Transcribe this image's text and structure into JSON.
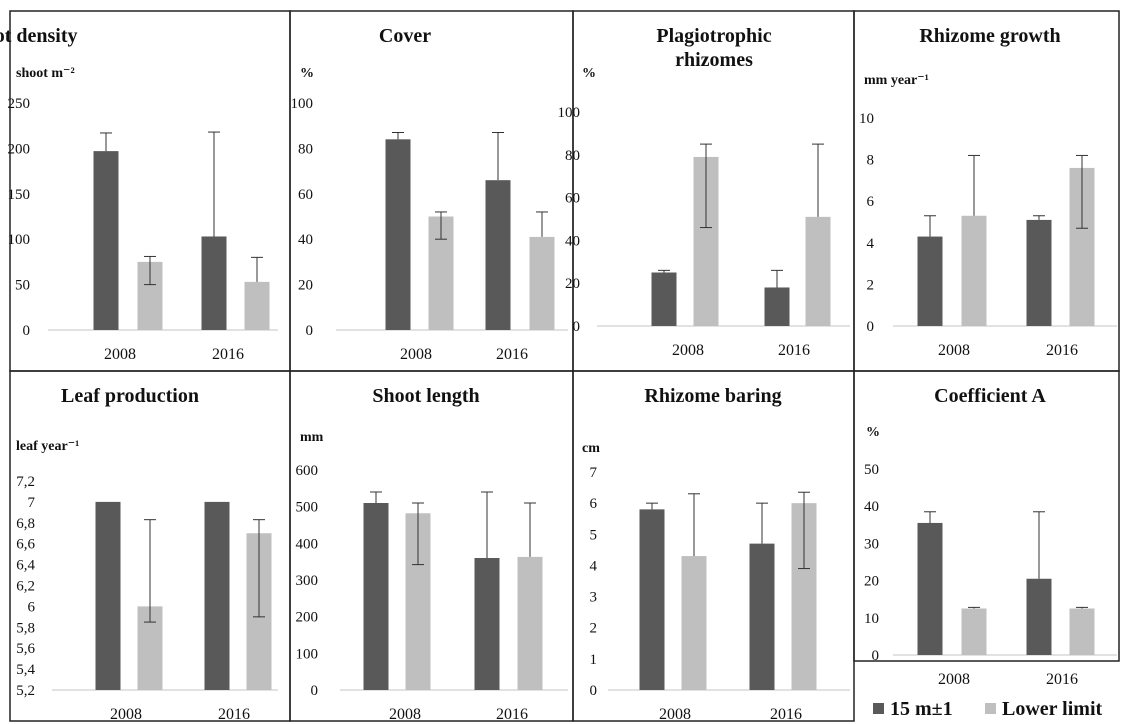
{
  "colors": {
    "dark": "#595959",
    "light": "#bfbfbf",
    "frame": "#222222",
    "baseline": "#d9d9d9",
    "error": "#333333"
  },
  "legend": {
    "items": [
      "15 m±1",
      "Lower limit"
    ]
  },
  "chart_data": [
    {
      "type": "bar",
      "title": "Shoot density",
      "ylabel": "shoot m⁻²",
      "categories": [
        "2008",
        "2016"
      ],
      "ylim": [
        0,
        250
      ],
      "yticks": [
        "0",
        "50",
        "100",
        "150",
        "200",
        "250"
      ],
      "series": [
        {
          "name": "15 m±1",
          "values": [
            197,
            103
          ],
          "err_low": [
            0,
            0
          ],
          "err_high": [
            20,
            115
          ]
        },
        {
          "name": "Lower limit",
          "values": [
            75,
            53
          ],
          "err_low": [
            25,
            0
          ],
          "err_high": [
            6,
            27
          ]
        }
      ]
    },
    {
      "type": "bar",
      "title": "Cover",
      "ylabel": "%",
      "categories": [
        "2008",
        "2016"
      ],
      "ylim": [
        0,
        100
      ],
      "yticks": [
        "0",
        "20",
        "40",
        "60",
        "80",
        "100"
      ],
      "series": [
        {
          "name": "15 m±1",
          "values": [
            84,
            66
          ],
          "err_low": [
            0,
            0
          ],
          "err_high": [
            3,
            21
          ]
        },
        {
          "name": "Lower limit",
          "values": [
            50,
            41
          ],
          "err_low": [
            10,
            0
          ],
          "err_high": [
            2,
            11
          ]
        }
      ]
    },
    {
      "type": "bar",
      "title": "Plagiotrophic rhizomes",
      "ylabel": "%",
      "categories": [
        "2008",
        "2016"
      ],
      "ylim": [
        0,
        100
      ],
      "yticks": [
        "0",
        "20",
        "40",
        "60",
        "80",
        "100"
      ],
      "series": [
        {
          "name": "15 m±1",
          "values": [
            25,
            18
          ],
          "err_low": [
            0,
            0
          ],
          "err_high": [
            1,
            8
          ]
        },
        {
          "name": "Lower limit",
          "values": [
            79,
            51
          ],
          "err_low": [
            33,
            0
          ],
          "err_high": [
            6,
            34
          ]
        }
      ]
    },
    {
      "type": "bar",
      "title": "Rhizome growth",
      "ylabel": "mm year⁻¹",
      "categories": [
        "2008",
        "2016"
      ],
      "ylim": [
        0,
        10
      ],
      "yticks": [
        "0",
        "2",
        "4",
        "6",
        "8",
        "10"
      ],
      "series": [
        {
          "name": "15 m±1",
          "values": [
            4.3,
            5.1
          ],
          "err_low": [
            0,
            0
          ],
          "err_high": [
            1.0,
            0.2
          ]
        },
        {
          "name": "Lower limit",
          "values": [
            5.3,
            7.6
          ],
          "err_low": [
            0,
            2.9
          ],
          "err_high": [
            2.9,
            0.6
          ]
        }
      ]
    },
    {
      "type": "bar",
      "title": "Leaf production",
      "ylabel": "leaf year⁻¹",
      "categories": [
        "2008",
        "2016"
      ],
      "ylim": [
        5.2,
        7.2
      ],
      "yticks": [
        "5,2",
        "5,4",
        "5,6",
        "5,8",
        "6",
        "6,2",
        "6,4",
        "6,6",
        "6,8",
        "7",
        "7,2"
      ],
      "series": [
        {
          "name": "15 m±1",
          "values": [
            7.0,
            7.0
          ],
          "err_low": [
            0,
            0
          ],
          "err_high": [
            0,
            0
          ]
        },
        {
          "name": "Lower limit",
          "values": [
            6.0,
            6.7
          ],
          "err_low": [
            0.15,
            0.8
          ],
          "err_high": [
            0.83,
            0.13
          ]
        }
      ]
    },
    {
      "type": "bar",
      "title": "Shoot length",
      "ylabel": "mm",
      "categories": [
        "2008",
        "2016"
      ],
      "ylim": [
        0,
        600
      ],
      "yticks": [
        "0",
        "100",
        "200",
        "300",
        "400",
        "500",
        "600"
      ],
      "series": [
        {
          "name": "15 m±1",
          "values": [
            510,
            360
          ],
          "err_low": [
            0,
            0
          ],
          "err_high": [
            30,
            180
          ]
        },
        {
          "name": "Lower limit",
          "values": [
            482,
            363
          ],
          "err_low": [
            140,
            0
          ],
          "err_high": [
            28,
            147
          ]
        }
      ]
    },
    {
      "type": "bar",
      "title": "Rhizome baring",
      "ylabel": "cm",
      "categories": [
        "2008",
        "2016"
      ],
      "ylim": [
        0,
        7
      ],
      "yticks": [
        "0",
        "1",
        "2",
        "3",
        "4",
        "5",
        "6",
        "7"
      ],
      "series": [
        {
          "name": "15 m±1",
          "values": [
            5.8,
            4.7
          ],
          "err_low": [
            0,
            0
          ],
          "err_high": [
            0.2,
            1.3
          ]
        },
        {
          "name": "Lower limit",
          "values": [
            4.3,
            6.0
          ],
          "err_low": [
            0,
            2.1
          ],
          "err_high": [
            2.0,
            0.35
          ]
        }
      ]
    },
    {
      "type": "bar",
      "title": "Coefficient A",
      "ylabel": "%",
      "categories": [
        "2008",
        "2016"
      ],
      "ylim": [
        0,
        50
      ],
      "yticks": [
        "0",
        "10",
        "20",
        "30",
        "40",
        "50"
      ],
      "series": [
        {
          "name": "15 m±1",
          "values": [
            35.5,
            20.5
          ],
          "err_low": [
            0,
            0
          ],
          "err_high": [
            3,
            18
          ]
        },
        {
          "name": "Lower limit",
          "values": [
            12.5,
            12.5
          ],
          "err_low": [
            0,
            0
          ],
          "err_high": [
            0.3,
            0.3
          ]
        }
      ]
    }
  ]
}
